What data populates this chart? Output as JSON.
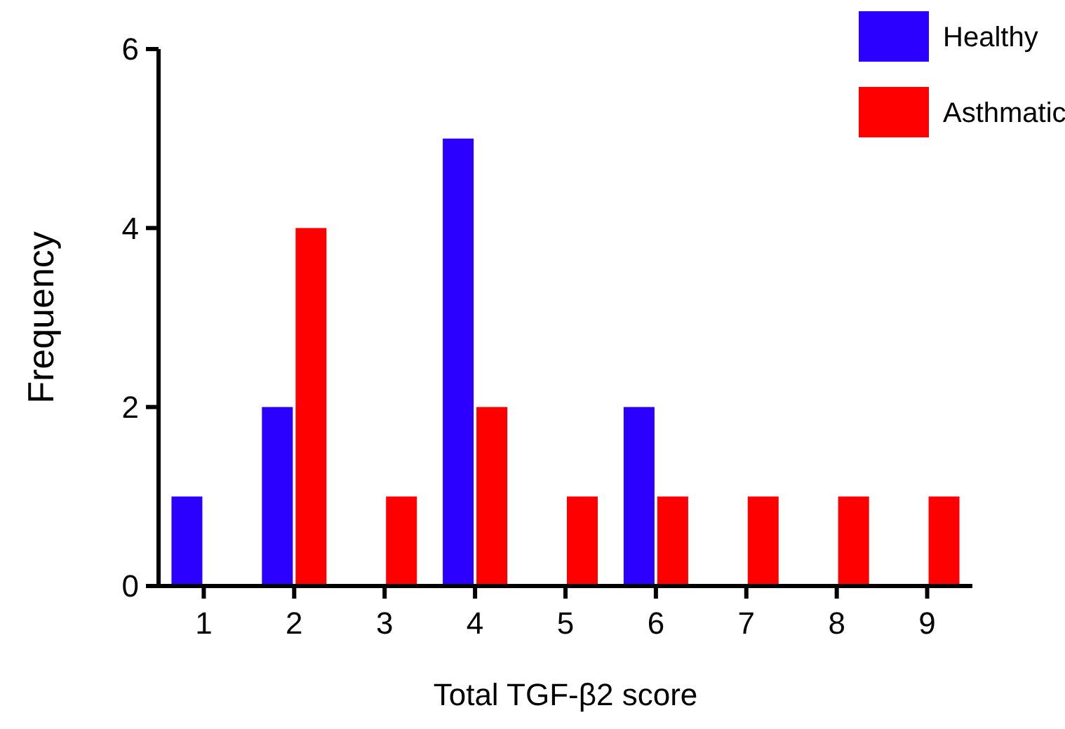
{
  "chart_data": {
    "type": "bar",
    "xlabel": "Total TGF-β2 score",
    "ylabel": "Frequency",
    "categories": [
      "1",
      "2",
      "3",
      "4",
      "5",
      "6",
      "7",
      "8",
      "9"
    ],
    "series": [
      {
        "name": "Healthy",
        "color": "#2b00ff",
        "values": [
          1,
          2,
          0,
          5,
          0,
          2,
          0,
          0,
          0
        ]
      },
      {
        "name": "Asthmatic",
        "color": "#ff0000",
        "values": [
          0,
          4,
          1,
          2,
          1,
          1,
          1,
          1,
          1
        ]
      }
    ],
    "ylim": [
      0,
      6
    ],
    "yticks": [
      0,
      2,
      4,
      6
    ],
    "grid": false,
    "legend": "top right"
  }
}
